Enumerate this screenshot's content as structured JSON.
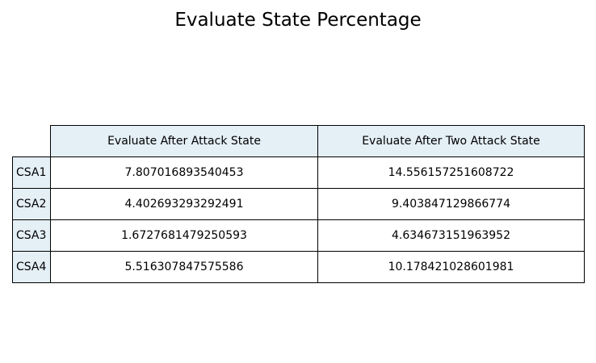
{
  "chart_data": {
    "type": "table",
    "title": "Evaluate State Percentage",
    "header_color": "#e4eff6",
    "columns": [
      "Evaluate After Attack State",
      "Evaluate After Two Attack State"
    ],
    "rows": [
      {
        "label": "CSA1",
        "values": [
          "7.807016893540453",
          "14.556157251608722"
        ]
      },
      {
        "label": "CSA2",
        "values": [
          "4.402693293292491",
          "9.403847129866774"
        ]
      },
      {
        "label": "CSA3",
        "values": [
          "1.6727681479250593",
          "4.634673151963952"
        ]
      },
      {
        "label": "CSA4",
        "values": [
          "5.516307847575586",
          "10.178421028601981"
        ]
      }
    ]
  }
}
